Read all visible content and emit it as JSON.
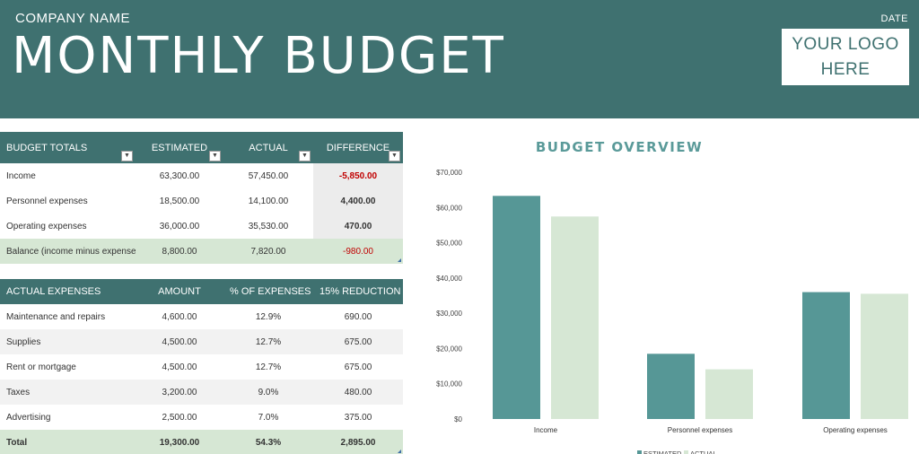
{
  "header": {
    "company": "COMPANY NAME",
    "title": "MONTHLY BUDGET",
    "date": "DATE",
    "logo_line1": "YOUR LOGO",
    "logo_line2": "HERE"
  },
  "budget_totals": {
    "columns": [
      "BUDGET TOTALS",
      "ESTIMATED",
      "ACTUAL",
      "DIFFERENCE"
    ],
    "rows": [
      {
        "label": "Income",
        "estimated": "63,300.00",
        "actual": "57,450.00",
        "difference": "-5,850.00"
      },
      {
        "label": "Personnel expenses",
        "estimated": "18,500.00",
        "actual": "14,100.00",
        "difference": "4,400.00"
      },
      {
        "label": "Operating expenses",
        "estimated": "36,000.00",
        "actual": "35,530.00",
        "difference": "470.00"
      }
    ],
    "balance": {
      "label": "Balance (income minus expenses)",
      "estimated": "8,800.00",
      "actual": "7,820.00",
      "difference": "-980.00"
    }
  },
  "actual_expenses": {
    "columns": [
      "ACTUAL EXPENSES",
      "AMOUNT",
      "% OF EXPENSES",
      "15% REDUCTION"
    ],
    "rows": [
      {
        "label": "Maintenance and repairs",
        "amount": "4,600.00",
        "percent": "12.9%",
        "reduction": "690.00"
      },
      {
        "label": "Supplies",
        "amount": "4,500.00",
        "percent": "12.7%",
        "reduction": "675.00"
      },
      {
        "label": "Rent or mortgage",
        "amount": "4,500.00",
        "percent": "12.7%",
        "reduction": "675.00"
      },
      {
        "label": "Taxes",
        "amount": "3,200.00",
        "percent": "9.0%",
        "reduction": "480.00"
      },
      {
        "label": "Advertising",
        "amount": "2,500.00",
        "percent": "7.0%",
        "reduction": "375.00"
      }
    ],
    "total": {
      "label": "Total",
      "amount": "19,300.00",
      "percent": "54.3%",
      "reduction": "2,895.00"
    }
  },
  "colors": {
    "header": "#3f7170",
    "estimated": "#569796",
    "actual": "#d6e7d4",
    "negative": "#c00000"
  },
  "chart_data": {
    "type": "bar",
    "title": "BUDGET OVERVIEW",
    "categories": [
      "Income",
      "Personnel expenses",
      "Operating expenses"
    ],
    "series": [
      {
        "name": "ESTIMATED",
        "values": [
          63300,
          18500,
          36000
        ]
      },
      {
        "name": "ACTUAL",
        "values": [
          57450,
          14100,
          35530
        ]
      }
    ],
    "yticks": [
      "$0",
      "$10,000",
      "$20,000",
      "$30,000",
      "$40,000",
      "$50,000",
      "$60,000",
      "$70,000"
    ],
    "ylim": [
      0,
      70000
    ],
    "legend": "bottom",
    "grid": false
  }
}
